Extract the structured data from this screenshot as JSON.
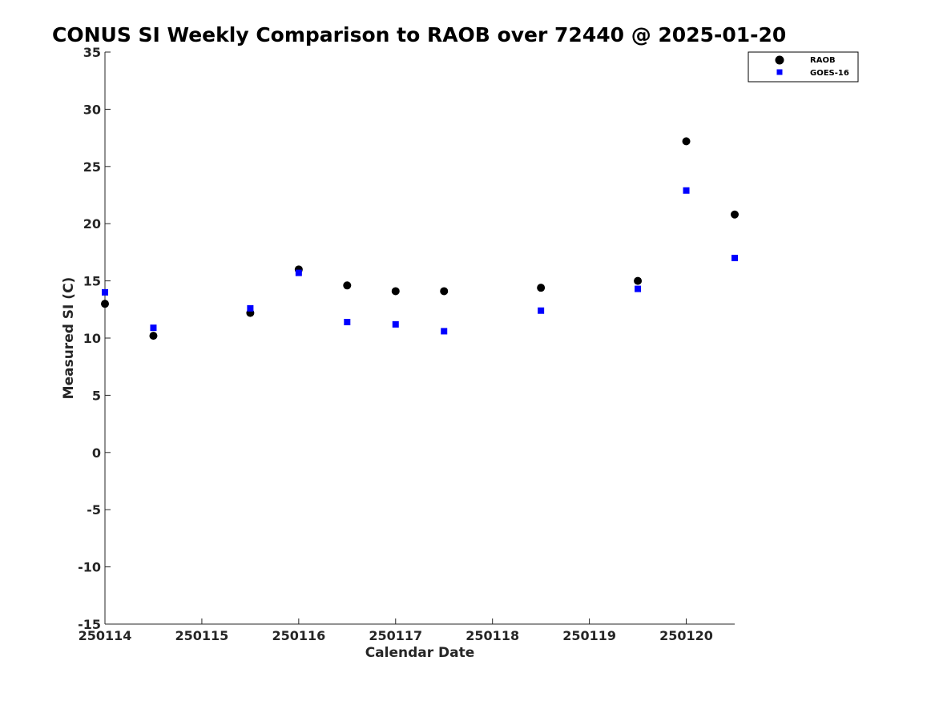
{
  "chart_data": {
    "type": "scatter",
    "title": "CONUS SI Weekly Comparison to RAOB over 72440 @ 2025-01-20",
    "xlabel": "Calendar Date",
    "ylabel": "Measured SI (C)",
    "xlim": [
      250114,
      250120.5
    ],
    "ylim": [
      -15,
      35
    ],
    "xticks": [
      250114,
      250115,
      250116,
      250117,
      250118,
      250119,
      250120
    ],
    "xtick_labels": [
      "250114",
      "250115",
      "250116",
      "250117",
      "250118",
      "250119",
      "250120"
    ],
    "yticks": [
      -15,
      -10,
      -5,
      0,
      5,
      10,
      15,
      20,
      25,
      30,
      35
    ],
    "ytick_labels": [
      "-15",
      "-10",
      "-5",
      "0",
      "5",
      "10",
      "15",
      "20",
      "25",
      "30",
      "35"
    ],
    "grid": false,
    "legend_position": "top-right",
    "series": [
      {
        "name": "RAOB",
        "marker": "circle",
        "color": "#000000",
        "x": [
          250114,
          250114.5,
          250115.5,
          250116,
          250116.5,
          250117,
          250117.5,
          250118.5,
          250119.5,
          250120,
          250120.5
        ],
        "y": [
          13.0,
          10.2,
          12.2,
          16.0,
          14.6,
          14.1,
          14.1,
          14.4,
          15.0,
          27.2,
          20.8
        ]
      },
      {
        "name": "GOES-16",
        "marker": "square",
        "color": "#0000ff",
        "x": [
          250114,
          250114.5,
          250115.5,
          250116,
          250116.5,
          250117,
          250117.5,
          250118.5,
          250119.5,
          250120,
          250120.5
        ],
        "y": [
          14.0,
          10.9,
          12.6,
          15.7,
          11.4,
          11.2,
          10.6,
          12.4,
          14.3,
          22.9,
          17.0
        ]
      }
    ]
  }
}
